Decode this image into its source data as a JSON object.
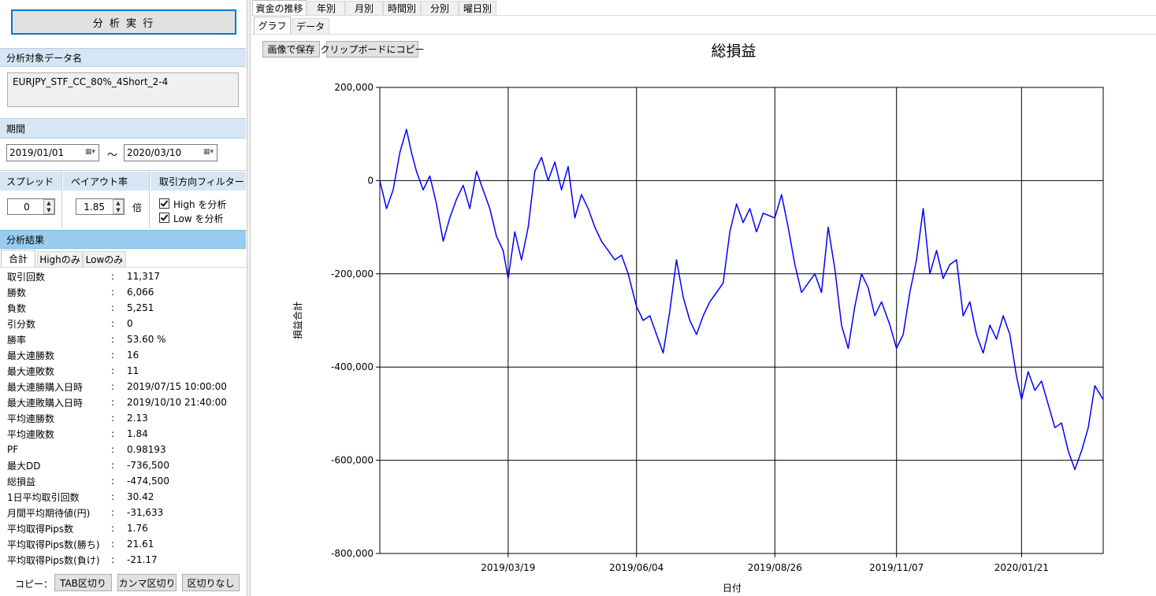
{
  "left_panel": {
    "run_button": "分 析 実 行",
    "data_name_header": "分析対象データ名",
    "data_name_value": "EURJPY_STF_CC_80%_4Short_2-4",
    "period_header": "期間",
    "date_from": "2019/01/01",
    "date_to": "2020/03/10",
    "tilde": "～",
    "spread_header": "スプレッド",
    "spread_value": "0",
    "payout_header": "ペイアウト率",
    "payout_value": "1.85",
    "payout_unit": "倍",
    "filter_header": "取引方向フィルター",
    "filter_high": "High を分析",
    "filter_low": "Low を分析",
    "results_header": "分析結果",
    "result_tabs": [
      "合計",
      "Highのみ",
      "Lowのみ"
    ],
    "results": [
      {
        "label": "取引回数",
        "value": "11,317"
      },
      {
        "label": "勝数",
        "value": "6,066"
      },
      {
        "label": "負数",
        "value": "5,251"
      },
      {
        "label": "引分数",
        "value": "0"
      },
      {
        "label": "勝率",
        "value": "53.60 %"
      },
      {
        "label": "最大連勝数",
        "value": "16"
      },
      {
        "label": "最大連敗数",
        "value": "11"
      },
      {
        "label": "最大連勝購入日時",
        "value": "2019/07/15 10:00:00"
      },
      {
        "label": "最大連敗購入日時",
        "value": "2019/10/10 21:40:00"
      },
      {
        "label": "平均連勝数",
        "value": "2.13"
      },
      {
        "label": "平均連敗数",
        "value": "1.84"
      },
      {
        "label": "PF",
        "value": "0.98193"
      },
      {
        "label": "最大DD",
        "value": "-736,500"
      },
      {
        "label": "総損益",
        "value": "-474,500"
      },
      {
        "label": "1日平均取引回数",
        "value": "30.42"
      },
      {
        "label": "月間平均期待値(円)",
        "value": "-31,633"
      },
      {
        "label": "平均取得Pips数",
        "value": "1.76"
      },
      {
        "label": "平均取得Pips数(勝ち)",
        "value": "21.61"
      },
      {
        "label": "平均取得Pips数(負け)",
        "value": "-21.17"
      }
    ],
    "result_sep": ":",
    "copy_label": "コピー：",
    "copy_buttons": [
      "TAB区切り",
      "カンマ区切り",
      "区切りなし"
    ]
  },
  "right_panel": {
    "top_tabs": [
      "資金の推移",
      "年別",
      "月別",
      "時間別",
      "分別",
      "曜日別"
    ],
    "sub_tabs": [
      "グラフ",
      "データ"
    ],
    "save_image_button": "画像で保存",
    "copy_clipboard_button": "クリップボードにコピー"
  },
  "chart_data": {
    "type": "line",
    "title": "総損益",
    "xlabel": "日付",
    "ylabel": "損益合計",
    "ylim": [
      -800000,
      200000
    ],
    "yticks": [
      "200,000",
      "0",
      "-200,000",
      "-400,000",
      "-600,000",
      "-800,000"
    ],
    "xticks": [
      "2019/03/19",
      "2019/06/04",
      "2019/08/26",
      "2019/11/07",
      "2020/01/21"
    ],
    "xrange": [
      "2019/01/01",
      "2020/03/10"
    ],
    "grid": true,
    "line_color": "#0000ff",
    "series": [
      {
        "x": [
          "2019/01/01",
          "2019/01/05",
          "2019/01/09",
          "2019/01/13",
          "2019/01/17",
          "2019/01/20",
          "2019/01/23",
          "2019/01/27",
          "2019/01/31",
          "2019/02/04",
          "2019/02/08",
          "2019/02/12",
          "2019/02/16",
          "2019/02/20",
          "2019/02/24",
          "2019/02/28",
          "2019/03/04",
          "2019/03/08",
          "2019/03/12",
          "2019/03/16",
          "2019/03/19",
          "2019/03/23",
          "2019/03/27",
          "2019/03/31",
          "2019/04/04",
          "2019/04/08",
          "2019/04/12",
          "2019/04/16",
          "2019/04/20",
          "2019/04/24",
          "2019/04/28",
          "2019/05/02",
          "2019/05/06",
          "2019/05/10",
          "2019/05/14",
          "2019/05/18",
          "2019/05/22",
          "2019/05/26",
          "2019/05/30",
          "2019/06/04",
          "2019/06/08",
          "2019/06/12",
          "2019/06/16",
          "2019/06/20",
          "2019/06/24",
          "2019/06/28",
          "2019/07/02",
          "2019/07/06",
          "2019/07/10",
          "2019/07/14",
          "2019/07/18",
          "2019/07/22",
          "2019/07/26",
          "2019/07/30",
          "2019/08/03",
          "2019/08/07",
          "2019/08/11",
          "2019/08/15",
          "2019/08/19",
          "2019/08/26",
          "2019/08/30",
          "2019/09/03",
          "2019/09/07",
          "2019/09/11",
          "2019/09/15",
          "2019/09/19",
          "2019/09/23",
          "2019/09/27",
          "2019/10/01",
          "2019/10/05",
          "2019/10/09",
          "2019/10/13",
          "2019/10/17",
          "2019/10/21",
          "2019/10/25",
          "2019/10/29",
          "2019/11/03",
          "2019/11/07",
          "2019/11/11",
          "2019/11/15",
          "2019/11/19",
          "2019/11/23",
          "2019/11/27",
          "2019/12/01",
          "2019/12/05",
          "2019/12/09",
          "2019/12/13",
          "2019/12/17",
          "2019/12/21",
          "2019/12/25",
          "2019/12/29",
          "2020/01/02",
          "2020/01/06",
          "2020/01/10",
          "2020/01/14",
          "2020/01/18",
          "2020/01/21",
          "2020/01/25",
          "2020/01/29",
          "2020/02/02",
          "2020/02/06",
          "2020/02/10",
          "2020/02/14",
          "2020/02/18",
          "2020/02/22",
          "2020/02/26",
          "2020/03/01",
          "2020/03/05",
          "2020/03/10"
        ],
        "y": [
          0,
          -60000,
          -20000,
          60000,
          110000,
          60000,
          20000,
          -20000,
          10000,
          -50000,
          -130000,
          -80000,
          -40000,
          -10000,
          -60000,
          20000,
          -20000,
          -60000,
          -120000,
          -150000,
          -210000,
          -110000,
          -170000,
          -100000,
          20000,
          50000,
          0,
          40000,
          -20000,
          30000,
          -80000,
          -30000,
          -60000,
          -100000,
          -130000,
          -150000,
          -170000,
          -160000,
          -200000,
          -270000,
          -300000,
          -290000,
          -330000,
          -370000,
          -280000,
          -170000,
          -250000,
          -300000,
          -330000,
          -290000,
          -260000,
          -240000,
          -220000,
          -110000,
          -50000,
          -90000,
          -60000,
          -110000,
          -70000,
          -80000,
          -30000,
          -100000,
          -180000,
          -240000,
          -220000,
          -200000,
          -240000,
          -100000,
          -190000,
          -310000,
          -360000,
          -270000,
          -200000,
          -230000,
          -290000,
          -260000,
          -310000,
          -360000,
          -330000,
          -240000,
          -170000,
          -60000,
          -200000,
          -150000,
          -210000,
          -180000,
          -170000,
          -290000,
          -260000,
          -330000,
          -370000,
          -310000,
          -340000,
          -290000,
          -330000,
          -420000,
          -470000,
          -410000,
          -450000,
          -430000,
          -480000,
          -530000,
          -520000,
          -580000,
          -620000,
          -580000,
          -530000,
          -440000,
          -470000
        ]
      }
    ]
  }
}
